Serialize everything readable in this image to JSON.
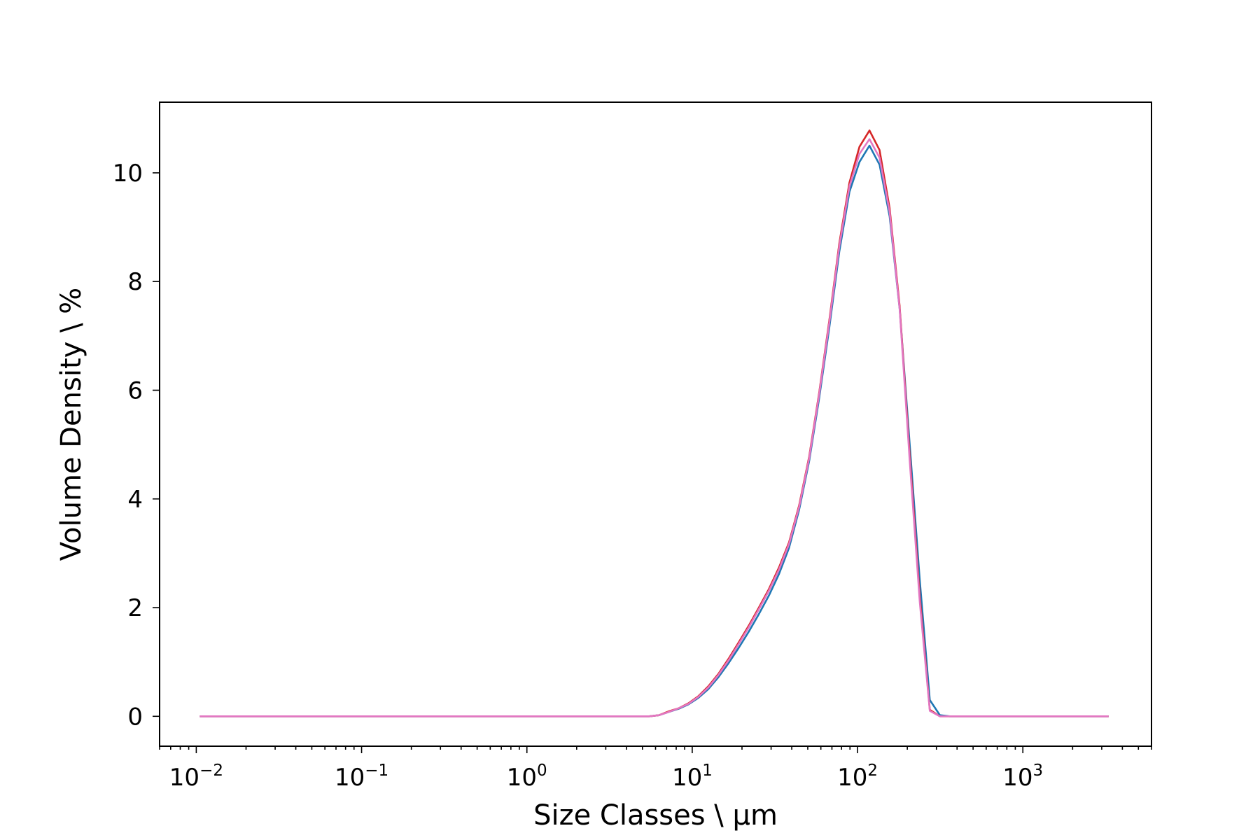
{
  "chart_data": {
    "type": "line",
    "title": "",
    "xlabel": "Size Classes \\ µm",
    "ylabel": "Volume Density \\ %",
    "xscale": "log",
    "xlim": [
      0.006,
      6000
    ],
    "ylim": [
      -0.55,
      11.3
    ],
    "grid": false,
    "legend": "none",
    "x_ticks": [
      {
        "base": "10",
        "exp": "−2",
        "value": 0.01
      },
      {
        "base": "10",
        "exp": "−1",
        "value": 0.1
      },
      {
        "base": "10",
        "exp": "0",
        "value": 1
      },
      {
        "base": "10",
        "exp": "1",
        "value": 10
      },
      {
        "base": "10",
        "exp": "2",
        "value": 100
      },
      {
        "base": "10",
        "exp": "3",
        "value": 1000
      }
    ],
    "y_ticks": [
      {
        "label": "0",
        "value": 0
      },
      {
        "label": "2",
        "value": 2
      },
      {
        "label": "4",
        "value": 4
      },
      {
        "label": "6",
        "value": 6
      },
      {
        "label": "8",
        "value": 8
      },
      {
        "label": "10",
        "value": 10
      }
    ],
    "series": [
      {
        "color": "#1f77b4",
        "x": [
          0.0105,
          5.5,
          6.3,
          7.2,
          8.3,
          9.5,
          10.9,
          12.5,
          14.4,
          16.6,
          19.1,
          22.0,
          25.3,
          29.1,
          33.5,
          38.5,
          44.3,
          51.0,
          58.6,
          67.5,
          77.6,
          89.3,
          102.7,
          118.1,
          135.9,
          156.3,
          179.8,
          206.8,
          237.9,
          273.7,
          314.8,
          362.1,
          416.6,
          3300
        ],
        "y": [
          0.0,
          0.0,
          0.02,
          0.08,
          0.14,
          0.22,
          0.34,
          0.5,
          0.72,
          0.98,
          1.26,
          1.56,
          1.88,
          2.22,
          2.62,
          3.1,
          3.8,
          4.7,
          5.85,
          7.15,
          8.55,
          9.65,
          10.2,
          10.5,
          10.15,
          9.2,
          7.5,
          5.0,
          2.5,
          0.3,
          0.02,
          0.0,
          0.0,
          0.0
        ]
      },
      {
        "color": "#d62728",
        "x": [
          0.0105,
          5.5,
          6.3,
          7.2,
          8.3,
          9.5,
          10.9,
          12.5,
          14.4,
          16.6,
          19.1,
          22.0,
          25.3,
          29.1,
          33.5,
          38.5,
          44.3,
          51.0,
          58.6,
          67.5,
          77.6,
          89.3,
          102.7,
          118.1,
          135.9,
          156.3,
          179.8,
          206.8,
          237.9,
          273.7,
          314.8,
          362.1,
          416.6,
          3300
        ],
        "y": [
          0.0,
          0.0,
          0.02,
          0.09,
          0.15,
          0.24,
          0.37,
          0.55,
          0.78,
          1.06,
          1.36,
          1.67,
          2.0,
          2.34,
          2.74,
          3.2,
          3.88,
          4.78,
          5.95,
          7.28,
          8.7,
          9.82,
          10.48,
          10.78,
          10.42,
          9.35,
          7.55,
          4.8,
          2.2,
          0.12,
          0.0,
          0.0,
          0.0,
          0.0
        ]
      },
      {
        "color": "#e377c2",
        "x": [
          0.0105,
          5.5,
          6.3,
          7.2,
          8.3,
          9.5,
          10.9,
          12.5,
          14.4,
          16.6,
          19.1,
          22.0,
          25.3,
          29.1,
          33.5,
          38.5,
          44.3,
          51.0,
          58.6,
          67.5,
          77.6,
          89.3,
          102.7,
          118.1,
          135.9,
          156.3,
          179.8,
          206.8,
          237.9,
          273.7,
          314.8,
          362.1,
          416.6,
          3300
        ],
        "y": [
          0.0,
          0.0,
          0.02,
          0.08,
          0.15,
          0.23,
          0.36,
          0.53,
          0.76,
          1.03,
          1.33,
          1.64,
          1.97,
          2.31,
          2.7,
          3.17,
          3.85,
          4.75,
          5.92,
          7.24,
          8.65,
          9.75,
          10.35,
          10.62,
          10.28,
          9.28,
          7.5,
          4.7,
          2.1,
          0.1,
          0.0,
          0.0,
          0.0,
          0.0
        ]
      }
    ]
  }
}
